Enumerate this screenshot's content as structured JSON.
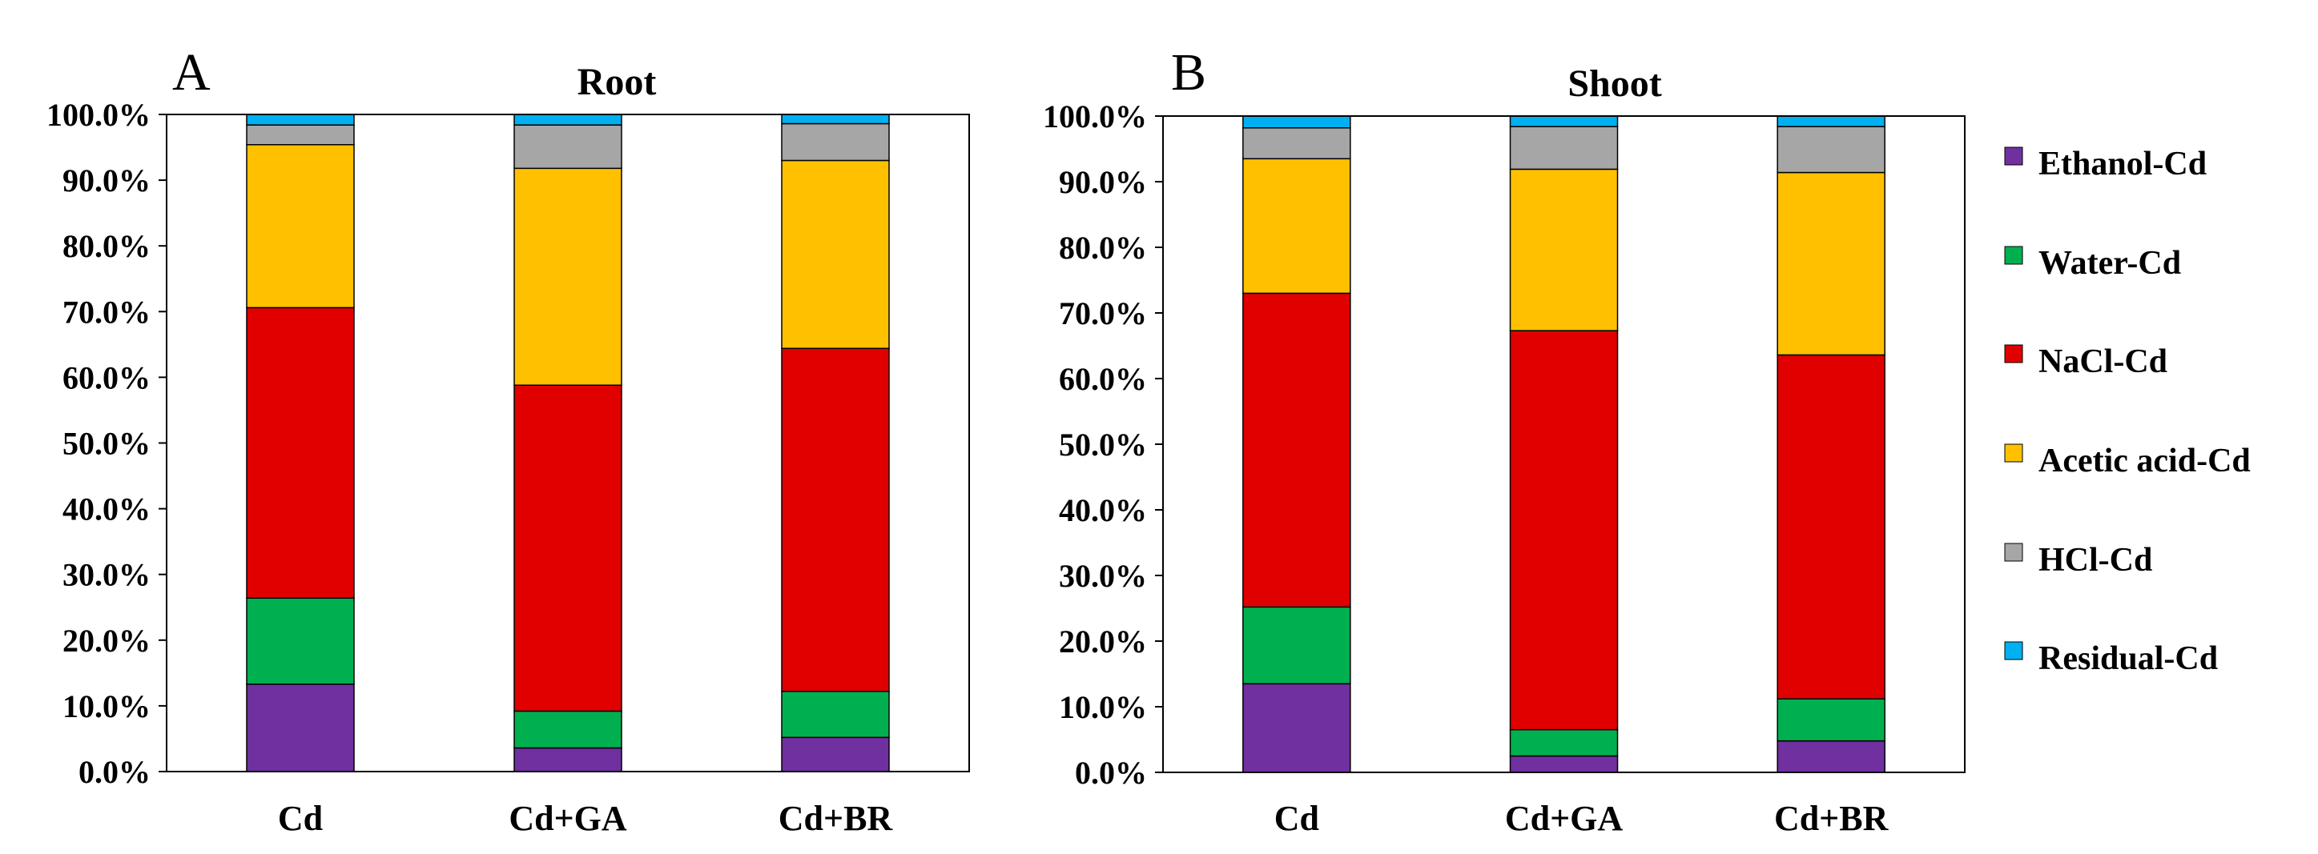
{
  "chart_data": [
    {
      "type": "bar",
      "stacked": true,
      "panel_label": "A",
      "title": "Root",
      "xlabel": "",
      "ylabel": "",
      "ylim": [
        0,
        100
      ],
      "yticks": [
        "0.0%",
        "10.0%",
        "20.0%",
        "30.0%",
        "40.0%",
        "50.0%",
        "60.0%",
        "70.0%",
        "80.0%",
        "90.0%",
        "100.0%"
      ],
      "categories": [
        "Cd",
        "Cd+GA",
        "Cd+BR"
      ],
      "series": [
        {
          "name": "Ethanol-Cd",
          "values": [
            13.3,
            3.6,
            5.2
          ]
        },
        {
          "name": "Water-Cd",
          "values": [
            13.1,
            5.6,
            7.0
          ]
        },
        {
          "name": "NaCl-Cd",
          "values": [
            44.2,
            49.6,
            52.2
          ]
        },
        {
          "name": "Acetic acid-Cd",
          "values": [
            24.8,
            33.0,
            28.6
          ]
        },
        {
          "name": "HCl-Cd",
          "values": [
            3.0,
            6.6,
            5.6
          ]
        },
        {
          "name": "Residual-Cd",
          "values": [
            1.6,
            1.6,
            1.4
          ]
        }
      ]
    },
    {
      "type": "bar",
      "stacked": true,
      "panel_label": "B",
      "title": "Shoot",
      "xlabel": "",
      "ylabel": "",
      "ylim": [
        0,
        100
      ],
      "yticks": [
        "0.0%",
        "10.0%",
        "20.0%",
        "30.0%",
        "40.0%",
        "50.0%",
        "60.0%",
        "70.0%",
        "80.0%",
        "90.0%",
        "100.0%"
      ],
      "categories": [
        "Cd",
        "Cd+GA",
        "Cd+BR"
      ],
      "series": [
        {
          "name": "Ethanol-Cd",
          "values": [
            13.5,
            2.5,
            4.8
          ]
        },
        {
          "name": "Water-Cd",
          "values": [
            11.7,
            4.0,
            6.4
          ]
        },
        {
          "name": "NaCl-Cd",
          "values": [
            47.8,
            60.8,
            52.4
          ]
        },
        {
          "name": "Acetic acid-Cd",
          "values": [
            20.5,
            24.6,
            27.8
          ]
        },
        {
          "name": "HCl-Cd",
          "values": [
            4.7,
            6.5,
            7.0
          ]
        },
        {
          "name": "Residual-Cd",
          "values": [
            1.8,
            1.6,
            1.6
          ]
        }
      ]
    }
  ],
  "legend": {
    "placement": "right",
    "items": [
      {
        "label": "Ethanol-Cd",
        "color": "#7030A0"
      },
      {
        "label": "Water-Cd",
        "color": "#00B050"
      },
      {
        "label": "NaCl-Cd",
        "color": "#E00000"
      },
      {
        "label": "Acetic acid-Cd",
        "color": "#FFC000"
      },
      {
        "label": "HCl-Cd",
        "color": "#A6A6A6"
      },
      {
        "label": "Residual-Cd",
        "color": "#00B0F0"
      }
    ]
  }
}
